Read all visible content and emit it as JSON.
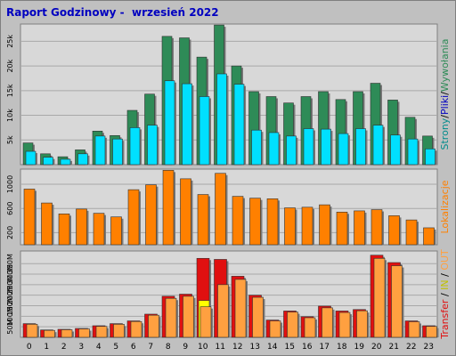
{
  "title": "Raport Godzinowy -  wrzesień 2022",
  "colors": {
    "background": "#c0c0c0",
    "plot_bg": "#d8d8d8",
    "wywolania": "#2e8b57",
    "pliki": "#00e0ff",
    "strony": "#008b8b",
    "lokalizacje": "#ff8000",
    "transfer": "#e01010",
    "in": "#ffff00",
    "out": "#ffa040"
  },
  "chart_data": [
    {
      "type": "bar",
      "categories": [
        "0",
        "1",
        "2",
        "3",
        "4",
        "5",
        "6",
        "7",
        "8",
        "9",
        "10",
        "11",
        "12",
        "13",
        "14",
        "15",
        "16",
        "17",
        "18",
        "19",
        "20",
        "21",
        "22",
        "23"
      ],
      "yticks": [
        "5k",
        "10k",
        "15k",
        "20k",
        "25k"
      ],
      "ytick_values": [
        5000,
        10000,
        15000,
        20000,
        25000
      ],
      "ylim": [
        0,
        28500
      ],
      "grid": true,
      "right_label": [
        "Strony",
        "/",
        "Pliki",
        "/",
        "Wywołania"
      ],
      "series": [
        {
          "name": "Wywołania",
          "values": [
            4400,
            2200,
            1600,
            3000,
            6800,
            5900,
            11000,
            14300,
            26000,
            25700,
            21800,
            28300,
            20000,
            14800,
            13800,
            12500,
            13800,
            14800,
            13200,
            14800,
            16500,
            13100,
            9600,
            5800
          ]
        },
        {
          "name": "Pliki",
          "values": [
            2700,
            1500,
            1100,
            2200,
            5800,
            5200,
            7500,
            8000,
            17000,
            16400,
            13800,
            18400,
            16300,
            7000,
            6500,
            5800,
            7300,
            7200,
            6300,
            7300,
            8000,
            6000,
            5200,
            3200
          ]
        }
      ]
    },
    {
      "type": "bar",
      "categories": [
        "0",
        "1",
        "2",
        "3",
        "4",
        "5",
        "6",
        "7",
        "8",
        "9",
        "10",
        "11",
        "12",
        "13",
        "14",
        "15",
        "16",
        "17",
        "18",
        "19",
        "20",
        "21",
        "22",
        "23"
      ],
      "yticks": [
        "200",
        "600",
        "1000"
      ],
      "ytick_values": [
        200,
        600,
        1000
      ],
      "ylim": [
        0,
        1250
      ],
      "grid": true,
      "right_label": [
        "Lokalizacje"
      ],
      "series": [
        {
          "name": "Lokalizacje",
          "values": [
            920,
            690,
            510,
            590,
            520,
            460,
            910,
            990,
            1230,
            1090,
            830,
            1180,
            800,
            770,
            760,
            610,
            620,
            660,
            540,
            560,
            580,
            480,
            410,
            280
          ]
        }
      ]
    },
    {
      "type": "bar",
      "categories": [
        "0",
        "1",
        "2",
        "3",
        "4",
        "5",
        "6",
        "7",
        "8",
        "9",
        "10",
        "11",
        "12",
        "13",
        "14",
        "15",
        "16",
        "17",
        "18",
        "19",
        "20",
        "21",
        "22",
        "23"
      ],
      "yticks": [
        "50M",
        "100M",
        "150M",
        "200M",
        "250M",
        "300M",
        "350M"
      ],
      "ytick_values": [
        50,
        100,
        150,
        200,
        250,
        300,
        350
      ],
      "ylim": [
        0,
        410
      ],
      "grid": true,
      "right_label": [
        "Transfer",
        " / ",
        "IN",
        " / ",
        "OUT"
      ],
      "series": [
        {
          "name": "Transfer",
          "values": [
            65,
            35,
            38,
            42,
            55,
            65,
            78,
            110,
            195,
            205,
            375,
            370,
            290,
            200,
            82,
            125,
            98,
            148,
            125,
            132,
            390,
            355,
            78,
            55
          ]
        },
        {
          "name": "IN",
          "values": [
            0,
            0,
            0,
            0,
            0,
            0,
            0,
            0,
            0,
            0,
            175,
            0,
            0,
            0,
            0,
            0,
            0,
            0,
            0,
            0,
            0,
            0,
            0,
            0
          ]
        },
        {
          "name": "OUT",
          "values": [
            62,
            33,
            36,
            40,
            52,
            62,
            75,
            105,
            185,
            195,
            145,
            250,
            275,
            190,
            78,
            120,
            93,
            140,
            118,
            126,
            375,
            340,
            74,
            52
          ]
        }
      ]
    }
  ]
}
